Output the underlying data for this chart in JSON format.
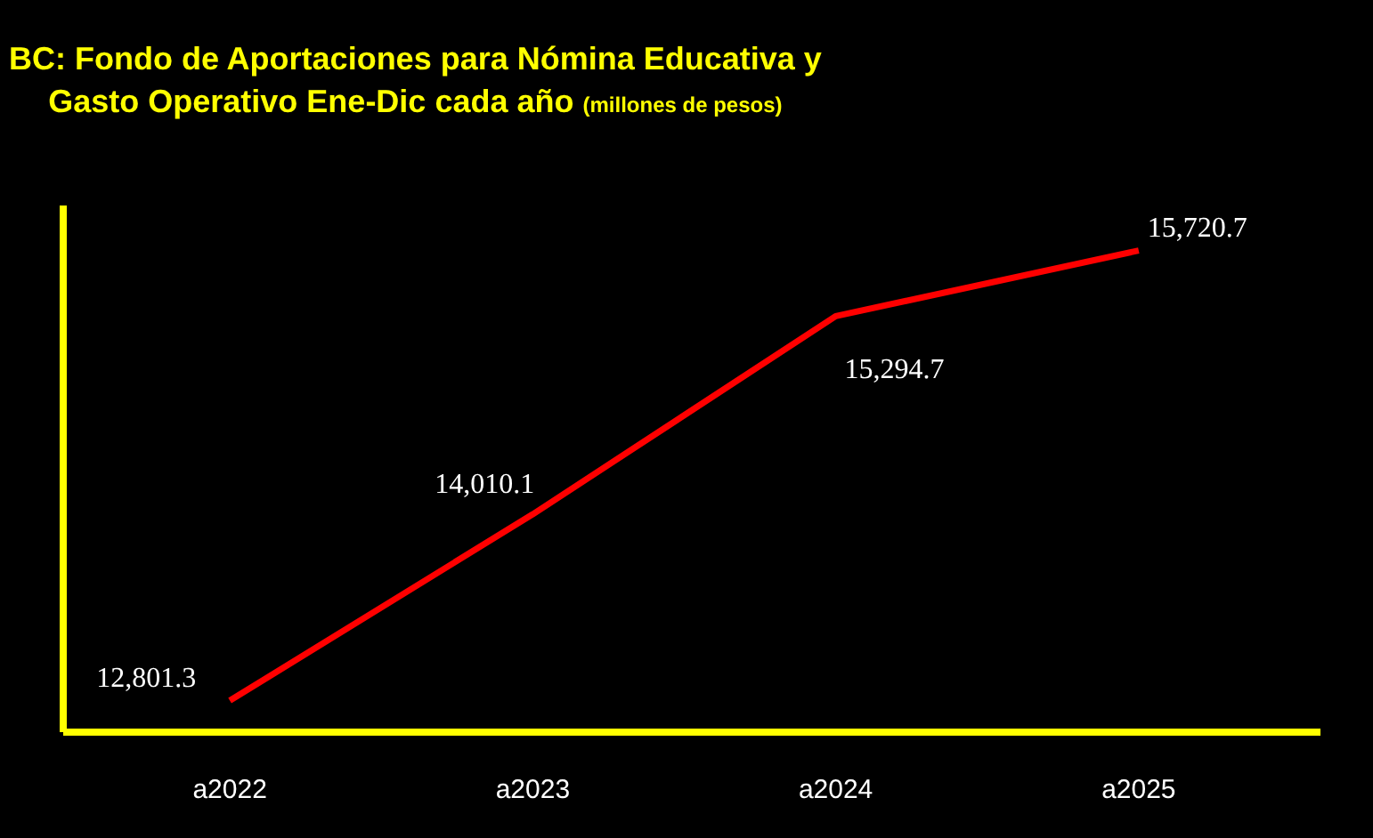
{
  "chart_data": {
    "type": "line",
    "title": "BC: Fondo de Aportaciones para Nómina Educativa y\nGasto Operativo Ene-Dic cada año",
    "subtitle": "(millones de pesos)",
    "categories": [
      "a2022",
      "a2023",
      "a2024",
      "a2025"
    ],
    "series": [
      {
        "color": "#ff0000",
        "values": [
          12801.3,
          14010.1,
          15294.7,
          15720.7
        ],
        "value_labels": [
          "12,801.3",
          "14,010.1",
          "15,294.7",
          "15,720.7"
        ]
      }
    ],
    "tick_labels": "x",
    "grid": false,
    "marker": "none",
    "line_style": "solid"
  }
}
